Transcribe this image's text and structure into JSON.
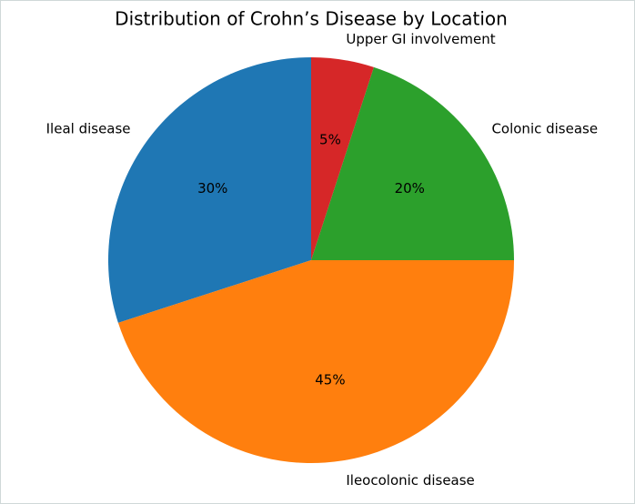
{
  "chart_data": {
    "type": "pie",
    "title": "Distribution of Crohn’s Disease by Location",
    "categories": [
      "Ileal disease",
      "Ileocolonic disease",
      "Colonic disease",
      "Upper GI involvement"
    ],
    "values": [
      30,
      45,
      20,
      5
    ],
    "value_labels": [
      "30%",
      "45%",
      "20%",
      "5%"
    ],
    "colors": [
      "#1f77b4",
      "#ff7f0e",
      "#2ca02c",
      "#d62728"
    ],
    "start_angle": 90
  }
}
